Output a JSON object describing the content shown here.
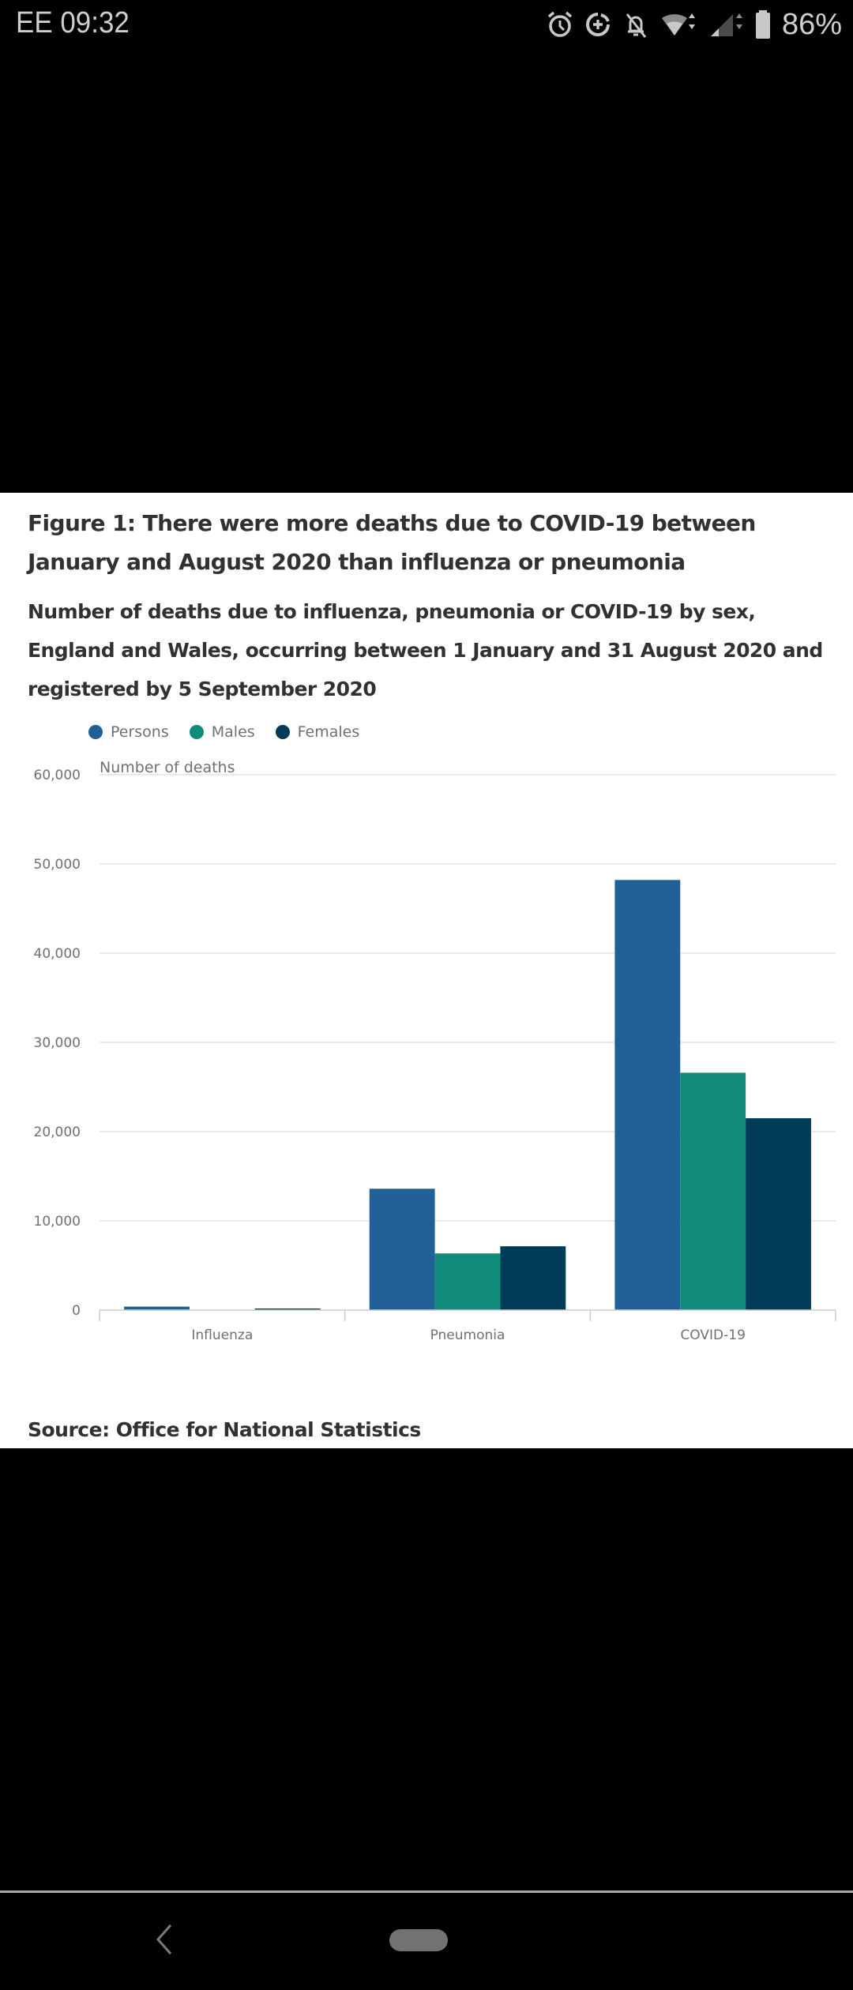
{
  "status_bar": {
    "carrier": "EE",
    "time": "09:32",
    "icons": [
      "alarm-icon",
      "data-saver-icon",
      "notifications-off-icon",
      "wifi-icon",
      "cell-signal-icon",
      "battery-icon"
    ],
    "battery_percent": "86%"
  },
  "figure": {
    "title": "Figure 1: There were more deaths due to COVID-19 between January and August 2020 than influenza or pneumonia",
    "subtitle": "Number of deaths due to influenza, pneumonia or COVID-19 by sex, England and Wales, occurring between 1 January and 31 August 2020 and registered by 5 September 2020",
    "source": "Source: Office for National Statistics"
  },
  "legend": [
    {
      "label": "Persons",
      "color": "#206095"
    },
    {
      "label": "Males",
      "color": "#118C7B"
    },
    {
      "label": "Females",
      "color": "#003C57"
    }
  ],
  "chart_data": {
    "type": "bar",
    "title": "Figure 1: There were more deaths due to COVID-19 between January and August 2020 than influenza or pneumonia",
    "subtitle": "Number of deaths due to influenza, pneumonia or COVID-19 by sex, England and Wales, occurring between 1 January and 31 August 2020 and registered by 5 September 2020",
    "xlabel": "",
    "ylabel": "Number of deaths",
    "categories": [
      "Influenza",
      "Pneumonia",
      "COVID-19"
    ],
    "series": [
      {
        "name": "Persons",
        "color": "#206095",
        "values": [
          390,
          13600,
          48200
        ]
      },
      {
        "name": "Males",
        "color": "#118C7B",
        "values": [
          0,
          6350,
          26600
        ]
      },
      {
        "name": "Females",
        "color": "#003C57",
        "values": [
          180,
          7150,
          21500
        ]
      }
    ],
    "ylim": [
      0,
      60000
    ],
    "yticks": [
      0,
      10000,
      20000,
      30000,
      40000,
      50000,
      60000
    ],
    "ytick_labels": [
      "0",
      "10,000",
      "20,000",
      "30,000",
      "40,000",
      "50,000",
      "60,000"
    ],
    "grid": true,
    "legend_position": "top-left"
  },
  "nav_bar": {
    "back_icon": "back-chevron-icon",
    "home_icon": "home-pill-icon"
  }
}
